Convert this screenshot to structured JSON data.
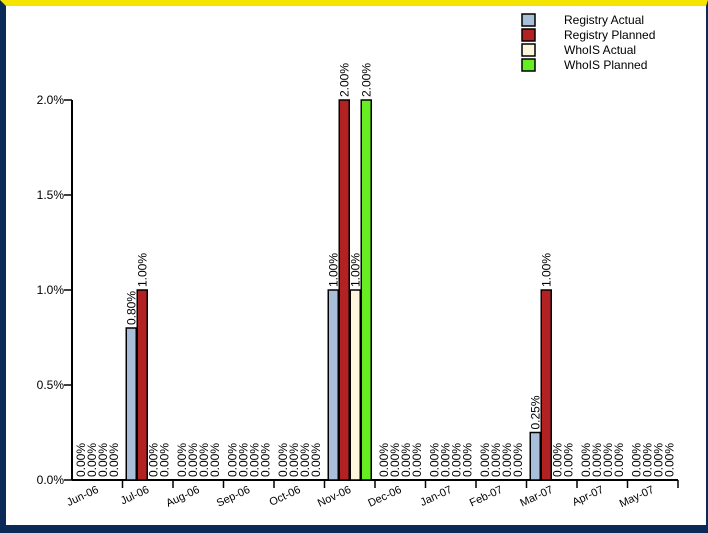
{
  "chart_data": {
    "type": "bar",
    "categories": [
      "Jun-06",
      "Jul-06",
      "Aug-06",
      "Sep-06",
      "Oct-06",
      "Nov-06",
      "Dec-06",
      "Jan-07",
      "Feb-07",
      "Mar-07",
      "Apr-07",
      "May-07"
    ],
    "series": [
      {
        "name": "Registry Actual",
        "color": "#a9bfd9",
        "values": [
          0,
          0.8,
          0,
          0,
          0,
          1.0,
          0,
          0,
          0,
          0.25,
          0,
          0
        ]
      },
      {
        "name": "Registry Planned",
        "color": "#b22222",
        "values": [
          0,
          1.0,
          0,
          0,
          0,
          2.0,
          0,
          0,
          0,
          1.0,
          0,
          0
        ]
      },
      {
        "name": "WhoIS Actual",
        "color": "#fdf5dc",
        "values": [
          0,
          0,
          0,
          0,
          0,
          1.0,
          0,
          0,
          0,
          0,
          0,
          0
        ]
      },
      {
        "name": "WhoIS Planned",
        "color": "#66ee22",
        "values": [
          0,
          0,
          0,
          0,
          0,
          2.0,
          0,
          0,
          0,
          0,
          0,
          0
        ]
      }
    ],
    "value_label_format": "0.00%",
    "ylim": [
      0,
      2.0
    ],
    "yticks": [
      "0.0%",
      "0.5%",
      "1.0%",
      "1.5%",
      "2.0%"
    ],
    "ytick_values": [
      0,
      0.5,
      1.0,
      1.5,
      2.0
    ],
    "grid": false,
    "legend_position": "top-right"
  },
  "frame_colors": {
    "top": "#f5e400",
    "side": "#0b2a57"
  }
}
